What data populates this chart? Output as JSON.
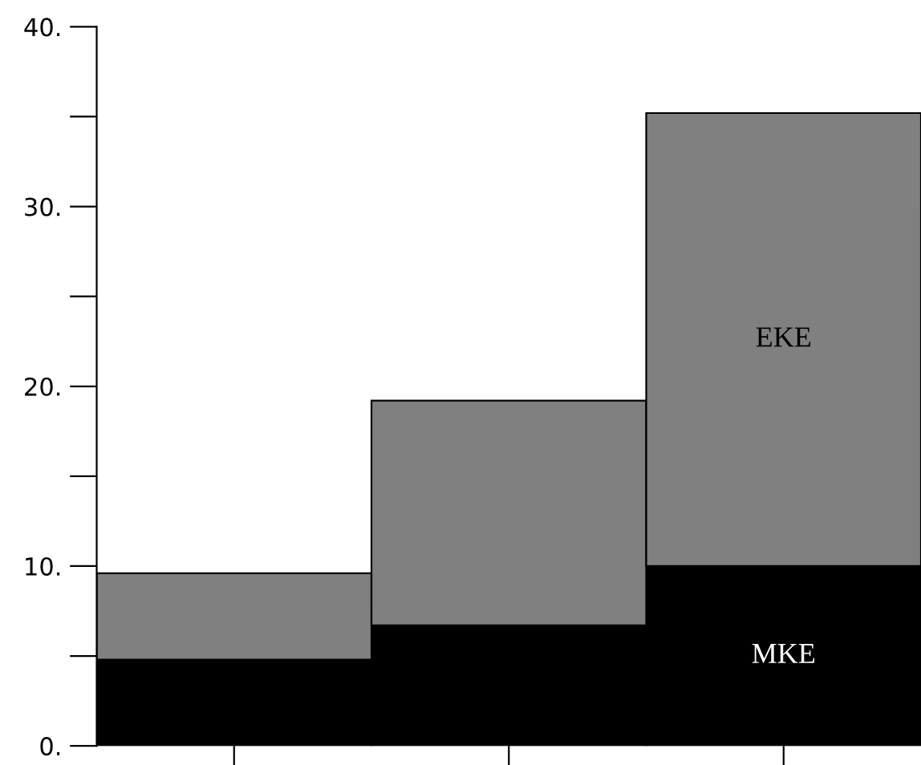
{
  "chart_data": {
    "type": "bar",
    "stacked": true,
    "categories": [
      null,
      null,
      null
    ],
    "series": [
      {
        "name": "MKE",
        "color": "#000000",
        "values": [
          4.8,
          6.7,
          10.0
        ]
      },
      {
        "name": "EKE",
        "color": "#808080",
        "values": [
          4.8,
          12.5,
          25.2
        ]
      }
    ],
    "ylim": [
      0,
      40
    ],
    "yticks": [
      {
        "value": 0,
        "label": "0."
      },
      {
        "value": 10,
        "label": "10."
      },
      {
        "value": 20,
        "label": "20."
      },
      {
        "value": 30,
        "label": "30."
      },
      {
        "value": 40,
        "label": "40."
      }
    ],
    "tick_labels": "y",
    "grid": false,
    "legend": false
  }
}
